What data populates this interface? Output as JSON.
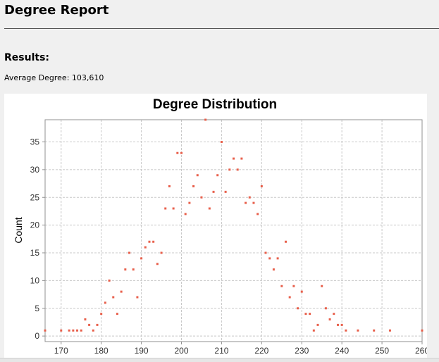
{
  "report": {
    "title": "Degree Report",
    "results_heading": "Results:",
    "average_degree_label": "Average Degree: 103,610"
  },
  "colors": {
    "point": "#e8604c",
    "grid": "#c8c8c8",
    "plot_background": "#ffffff",
    "panel_background": "#f0f0f0"
  },
  "chart_data": {
    "type": "scatter",
    "title": "Degree Distribution",
    "xlabel": "",
    "ylabel": "Count",
    "xlim": [
      166,
      260
    ],
    "ylim": [
      -1,
      39
    ],
    "xticks": [
      170,
      180,
      190,
      200,
      210,
      220,
      230,
      240,
      250,
      260
    ],
    "yticks": [
      0,
      5,
      10,
      15,
      20,
      25,
      30,
      35
    ],
    "grid": true,
    "legend": "none",
    "points": [
      [
        166,
        1
      ],
      [
        170,
        1
      ],
      [
        172,
        1
      ],
      [
        173,
        1
      ],
      [
        174,
        1
      ],
      [
        175,
        1
      ],
      [
        176,
        3
      ],
      [
        177,
        2
      ],
      [
        178,
        1
      ],
      [
        179,
        2
      ],
      [
        180,
        4
      ],
      [
        181,
        6
      ],
      [
        182,
        10
      ],
      [
        183,
        7
      ],
      [
        184,
        4
      ],
      [
        185,
        8
      ],
      [
        186,
        12
      ],
      [
        187,
        15
      ],
      [
        188,
        12
      ],
      [
        189,
        7
      ],
      [
        190,
        14
      ],
      [
        191,
        16
      ],
      [
        192,
        17
      ],
      [
        193,
        17
      ],
      [
        194,
        13
      ],
      [
        195,
        15
      ],
      [
        196,
        23
      ],
      [
        197,
        27
      ],
      [
        198,
        23
      ],
      [
        199,
        33
      ],
      [
        200,
        33
      ],
      [
        201,
        22
      ],
      [
        202,
        24
      ],
      [
        203,
        27
      ],
      [
        204,
        29
      ],
      [
        205,
        25
      ],
      [
        206,
        39
      ],
      [
        207,
        23
      ],
      [
        208,
        26
      ],
      [
        209,
        29
      ],
      [
        210,
        35
      ],
      [
        211,
        26
      ],
      [
        212,
        30
      ],
      [
        213,
        32
      ],
      [
        214,
        30
      ],
      [
        215,
        32
      ],
      [
        216,
        24
      ],
      [
        217,
        25
      ],
      [
        218,
        24
      ],
      [
        219,
        22
      ],
      [
        220,
        27
      ],
      [
        221,
        15
      ],
      [
        222,
        14
      ],
      [
        223,
        12
      ],
      [
        224,
        14
      ],
      [
        225,
        9
      ],
      [
        226,
        17
      ],
      [
        227,
        7
      ],
      [
        228,
        9
      ],
      [
        229,
        5
      ],
      [
        230,
        8
      ],
      [
        231,
        4
      ],
      [
        232,
        4
      ],
      [
        233,
        1
      ],
      [
        234,
        2
      ],
      [
        235,
        9
      ],
      [
        236,
        5
      ],
      [
        237,
        3
      ],
      [
        238,
        4
      ],
      [
        239,
        2
      ],
      [
        240,
        2
      ],
      [
        241,
        1
      ],
      [
        244,
        1
      ],
      [
        248,
        1
      ],
      [
        252,
        1
      ],
      [
        260,
        1
      ]
    ]
  }
}
